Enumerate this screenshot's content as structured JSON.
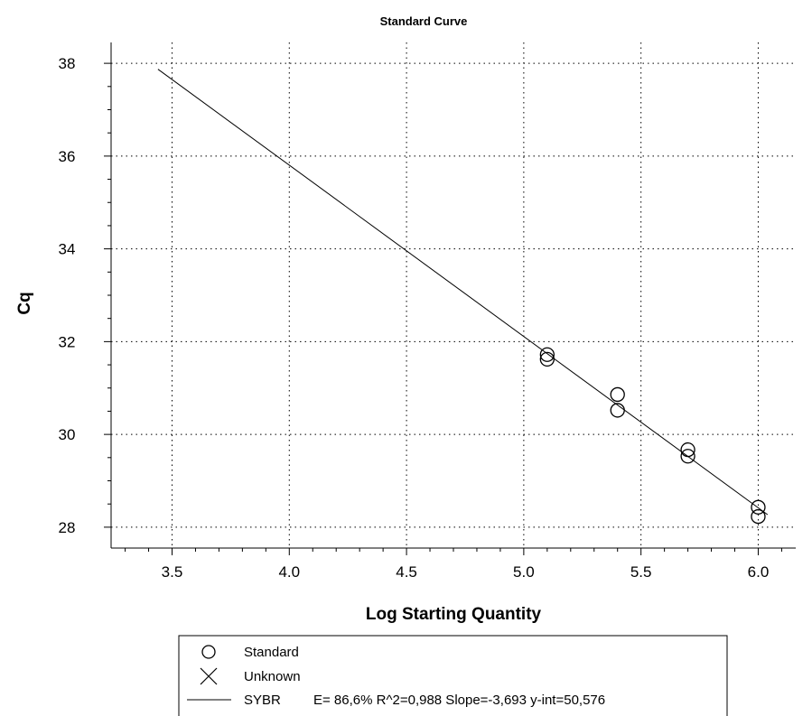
{
  "chart_data": {
    "type": "scatter",
    "title": "Standard Curve",
    "xlabel": "Log Starting Quantity",
    "ylabel": "Cq",
    "xlim": [
      3.24,
      6.16
    ],
    "ylim": [
      27.55,
      38.45
    ],
    "x_ticks": [
      3.5,
      4.0,
      4.5,
      5.0,
      5.5,
      6.0
    ],
    "x_tick_labels": [
      "3.5",
      "4.0",
      "4.5",
      "5.0",
      "5.5",
      "6.0"
    ],
    "y_ticks": [
      28,
      30,
      32,
      34,
      36,
      38
    ],
    "y_tick_labels": [
      "28",
      "30",
      "32",
      "34",
      "36",
      "38"
    ],
    "grid": true,
    "legend_position": "bottom",
    "series": [
      {
        "name": "Standard",
        "marker": "circle",
        "points": [
          {
            "x": 5.1,
            "y": 31.72
          },
          {
            "x": 5.1,
            "y": 31.62
          },
          {
            "x": 5.4,
            "y": 30.86
          },
          {
            "x": 5.4,
            "y": 30.52
          },
          {
            "x": 5.7,
            "y": 29.67
          },
          {
            "x": 5.7,
            "y": 29.53
          },
          {
            "x": 6.0,
            "y": 28.43
          },
          {
            "x": 6.0,
            "y": 28.23
          }
        ]
      },
      {
        "name": "Unknown",
        "marker": "x",
        "points": []
      }
    ],
    "fit_line": {
      "name": "SYBR",
      "slope": -3.693,
      "intercept": 50.576,
      "x_range": [
        3.44,
        6.04
      ],
      "stats": "E= 86,6% R^2=0,988 Slope=-3,693 y-int=50,576"
    }
  },
  "colors": {
    "background": "#ffffff",
    "ink": "#000000",
    "grid": "#000000"
  }
}
